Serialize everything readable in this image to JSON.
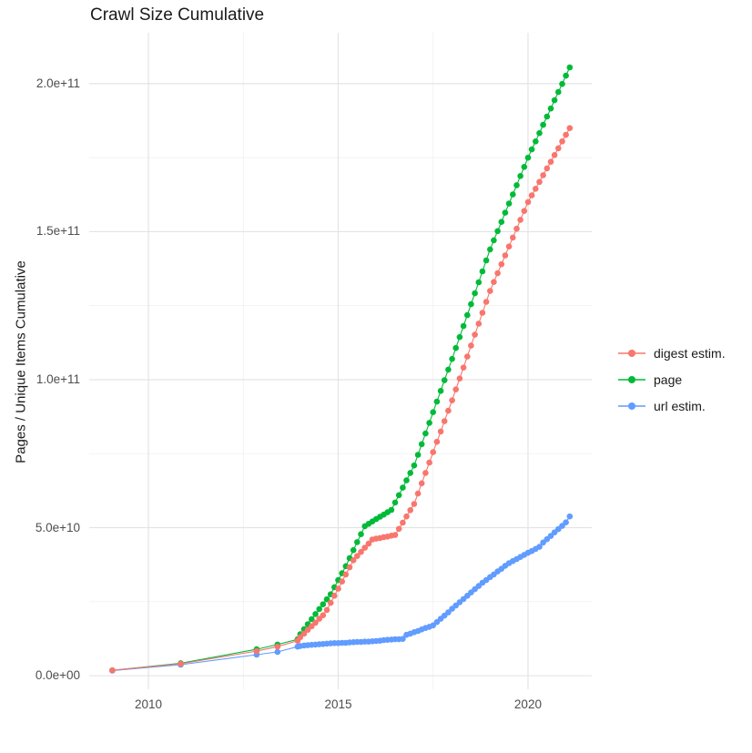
{
  "title": "Crawl Size Cumulative",
  "y_axis_title": "Pages / Unique Items Cumulative",
  "legend": {
    "items": [
      {
        "label": "digest estim.",
        "color": "#F8766D"
      },
      {
        "label": "page",
        "color": "#00BA38"
      },
      {
        "label": "url estim.",
        "color": "#619CFF"
      }
    ]
  },
  "chart_data": {
    "type": "line",
    "title": "Crawl Size Cumulative",
    "xlabel": "",
    "ylabel": "Pages / Unique Items Cumulative",
    "legend_position": "right",
    "grid": true,
    "grid_color_major": "#e4e4e4",
    "grid_color_minor": "#f0f0f0",
    "background": "#ffffff",
    "xlim": [
      2008.44,
      2021.68
    ],
    "ylim_e9": [
      -4.6,
      217.2
    ],
    "x_ticks": {
      "values": [
        2010,
        2015,
        2020
      ],
      "labels": [
        "2010",
        "2015",
        "2020"
      ]
    },
    "x_minor_ticks": [
      2012.5,
      2017.5
    ],
    "y_ticks": {
      "values_e9": [
        0,
        50,
        100,
        150,
        200
      ],
      "labels": [
        "0.0e+00",
        "5.0e+10",
        "1.0e+11",
        "1.5e+11",
        "2.0e+11"
      ]
    },
    "y_minor_ticks_e9": [
      25,
      75,
      125,
      175
    ],
    "y_unit": "items (values stored in billions, 1e9)",
    "x": [
      2009.05,
      2010.85,
      2012.85,
      2013.4,
      2013.93,
      2014.0,
      2014.1,
      2014.2,
      2014.3,
      2014.4,
      2014.5,
      2014.6,
      2014.7,
      2014.8,
      2014.9,
      2015.0,
      2015.1,
      2015.2,
      2015.3,
      2015.4,
      2015.5,
      2015.6,
      2015.7,
      2015.8,
      2015.9,
      2016.0,
      2016.1,
      2016.2,
      2016.3,
      2016.4,
      2016.5,
      2016.6,
      2016.7,
      2016.8,
      2016.9,
      2017.0,
      2017.1,
      2017.2,
      2017.3,
      2017.4,
      2017.5,
      2017.6,
      2017.7,
      2017.8,
      2017.9,
      2018.0,
      2018.1,
      2018.2,
      2018.3,
      2018.4,
      2018.5,
      2018.6,
      2018.7,
      2018.8,
      2018.9,
      2019.0,
      2019.1,
      2019.2,
      2019.3,
      2019.4,
      2019.5,
      2019.6,
      2019.7,
      2019.8,
      2019.9,
      2020.0,
      2020.1,
      2020.2,
      2020.3,
      2020.4,
      2020.5,
      2020.6,
      2020.7,
      2020.8,
      2020.9,
      2021.0,
      2021.1
    ],
    "series": [
      {
        "name": "digest estim.",
        "color": "#F8766D",
        "values_e9": [
          1.8,
          4.0,
          8.3,
          9.8,
          11.8,
          13.0,
          14.2,
          15.5,
          16.7,
          17.9,
          19.2,
          20.4,
          22.2,
          24.6,
          27.0,
          29.4,
          31.8,
          34.2,
          36.6,
          39.0,
          40.4,
          41.8,
          43.2,
          44.6,
          46.0,
          46.3,
          46.5,
          46.8,
          47.0,
          47.3,
          47.5,
          49.6,
          51.7,
          53.8,
          55.9,
          58.0,
          61.5,
          65.0,
          68.5,
          72.0,
          75.5,
          79.0,
          82.5,
          86.0,
          89.5,
          93.0,
          96.7,
          100.4,
          104.1,
          107.8,
          111.5,
          115.2,
          118.9,
          122.6,
          126.3,
          130.0,
          133.0,
          136.0,
          139.0,
          142.0,
          145.0,
          148.0,
          151.0,
          154.0,
          157.0,
          160.0,
          162.3,
          164.5,
          166.8,
          169.1,
          171.4,
          173.6,
          175.9,
          178.2,
          180.5,
          182.7,
          185.0
        ]
      },
      {
        "name": "page",
        "color": "#00BA38",
        "values_e9": [
          1.8,
          4.2,
          8.9,
          10.5,
          12.3,
          14.0,
          15.7,
          17.4,
          19.1,
          20.8,
          22.5,
          24.1,
          25.8,
          27.5,
          29.9,
          32.3,
          34.6,
          37.0,
          39.7,
          42.4,
          45.1,
          47.8,
          50.5,
          51.3,
          52.1,
          52.9,
          53.7,
          54.4,
          55.2,
          56.0,
          58.5,
          61.0,
          63.5,
          66.0,
          68.5,
          71.0,
          74.6,
          78.2,
          81.8,
          85.4,
          89.0,
          92.6,
          96.2,
          99.8,
          103.4,
          107.0,
          110.7,
          114.4,
          118.1,
          121.8,
          125.5,
          129.2,
          132.9,
          136.6,
          140.3,
          144.0,
          147.1,
          150.2,
          153.3,
          156.4,
          159.5,
          162.6,
          165.7,
          168.8,
          171.9,
          175.0,
          177.8,
          180.5,
          183.3,
          186.1,
          188.9,
          191.6,
          194.4,
          197.2,
          199.9,
          202.7,
          205.5
        ]
      },
      {
        "name": "url estim.",
        "color": "#619CFF",
        "values_e9": [
          1.7,
          3.7,
          7.1,
          8.0,
          9.8,
          10.0,
          10.2,
          10.3,
          10.4,
          10.5,
          10.6,
          10.7,
          10.8,
          10.9,
          11.0,
          11.0,
          11.1,
          11.1,
          11.2,
          11.3,
          11.4,
          11.4,
          11.5,
          11.5,
          11.6,
          11.7,
          11.8,
          12.0,
          12.1,
          12.2,
          12.3,
          12.3,
          12.4,
          13.8,
          14.2,
          14.7,
          15.1,
          15.6,
          16.1,
          16.5,
          17.0,
          18.1,
          19.2,
          20.3,
          21.4,
          22.6,
          23.7,
          24.8,
          25.9,
          27.0,
          28.1,
          29.2,
          30.3,
          31.4,
          32.3,
          33.3,
          34.2,
          35.2,
          36.1,
          37.1,
          38.0,
          38.7,
          39.4,
          40.1,
          40.8,
          41.5,
          42.1,
          42.8,
          43.5,
          45.0,
          46.1,
          47.2,
          48.4,
          49.5,
          50.6,
          51.8,
          53.8
        ]
      }
    ],
    "draw_order": [
      "page",
      "url estim.",
      "digest estim."
    ]
  }
}
